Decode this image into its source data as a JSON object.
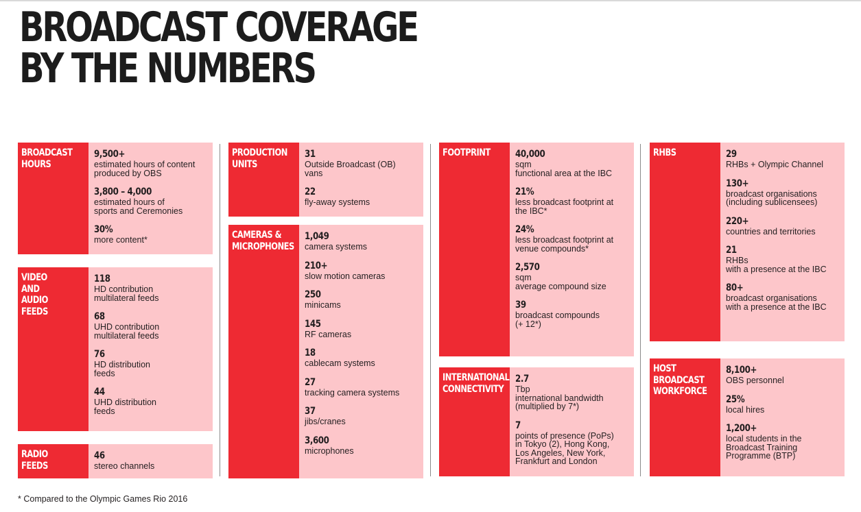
{
  "title": {
    "line1": "BROADCAST COVERAGE",
    "line2": "BY THE NUMBERS"
  },
  "accent_color": "#ee2a33",
  "panel_color": "#fdc6ca",
  "columns": [
    {
      "blocks": [
        {
          "label": "BROADCAST\nHOURS",
          "stats": [
            {
              "value": "9,500+",
              "desc": "estimated hours of content\nproduced by OBS"
            },
            {
              "value": "3,800 – 4,000",
              "desc": "estimated hours of\nsports and Ceremonies"
            },
            {
              "value": "30%",
              "desc": "more content*"
            }
          ]
        },
        {
          "label": "VIDEO\nAND\nAUDIO\nFEEDS",
          "stats": [
            {
              "value": "118",
              "desc": "HD contribution\nmultilateral feeds"
            },
            {
              "value": "68",
              "desc": "UHD contribution\nmultilateral feeds"
            },
            {
              "value": "76",
              "desc": "HD distribution\nfeeds"
            },
            {
              "value": "44",
              "desc": "UHD distribution\nfeeds"
            }
          ]
        },
        {
          "label": "RADIO\nFEEDS",
          "stats": [
            {
              "value": "46",
              "desc": "stereo channels"
            }
          ]
        }
      ]
    },
    {
      "blocks": [
        {
          "label": "PRODUCTION\nUNITS",
          "stats": [
            {
              "value": "31",
              "desc": "Outside Broadcast (OB)\nvans"
            },
            {
              "value": "22",
              "desc": "fly-away systems"
            }
          ]
        },
        {
          "label": "CAMERAS &\nMICROPHONES",
          "stats": [
            {
              "value": "1,049",
              "desc": "camera systems"
            },
            {
              "value": "210+",
              "desc": "slow motion cameras"
            },
            {
              "value": "250",
              "desc": "minicams"
            },
            {
              "value": "145",
              "desc": "RF cameras"
            },
            {
              "value": "18",
              "desc": "cablecam systems"
            },
            {
              "value": "27",
              "desc": "tracking camera systems"
            },
            {
              "value": "37",
              "desc": "jibs/cranes"
            },
            {
              "value": "3,600",
              "desc": "microphones"
            }
          ]
        }
      ]
    },
    {
      "blocks": [
        {
          "label": "FOOTPRINT",
          "stats": [
            {
              "value": "40,000",
              "desc": "sqm\nfunctional area at the IBC"
            },
            {
              "value": "21%",
              "desc": "less broadcast footprint at\nthe IBC*"
            },
            {
              "value": "24%",
              "desc": "less broadcast footprint at\nvenue compounds*"
            },
            {
              "value": "2,570",
              "desc": "sqm\naverage compound size"
            },
            {
              "value": "39",
              "desc": "broadcast compounds\n(+ 12*)"
            }
          ]
        },
        {
          "label": "INTERNATIONAL\nCONNECTIVITY",
          "stats": [
            {
              "value": "2.7",
              "desc": "Tbp\ninternational bandwidth\n(multiplied by 7*)"
            },
            {
              "value": "7",
              "desc": "points of presence (PoPs)\nin Tokyo (2), Hong Kong,\nLos Angeles, New York,\nFrankfurt and London"
            }
          ]
        }
      ]
    },
    {
      "blocks": [
        {
          "label": "RHBS",
          "stats": [
            {
              "value": "29",
              "desc": "RHBs + Olympic Channel"
            },
            {
              "value": "130+",
              "desc": "broadcast organisations\n(including sublicensees)"
            },
            {
              "value": "220+",
              "desc": "countries and territories"
            },
            {
              "value": "21",
              "desc": "RHBs\nwith a presence at the IBC"
            },
            {
              "value": "80+",
              "desc": "broadcast organisations\nwith a presence at the IBC"
            }
          ]
        },
        {
          "label": "HOST\nBROADCAST\nWORKFORCE",
          "stats": [
            {
              "value": "8,100+",
              "desc": "OBS personnel"
            },
            {
              "value": "25%",
              "desc": "local hires"
            },
            {
              "value": "1,200+",
              "desc": "local students in the\nBroadcast Training\nProgramme (BTP)"
            }
          ]
        }
      ]
    }
  ],
  "footnote": "* Compared to the Olympic Games Rio 2016"
}
